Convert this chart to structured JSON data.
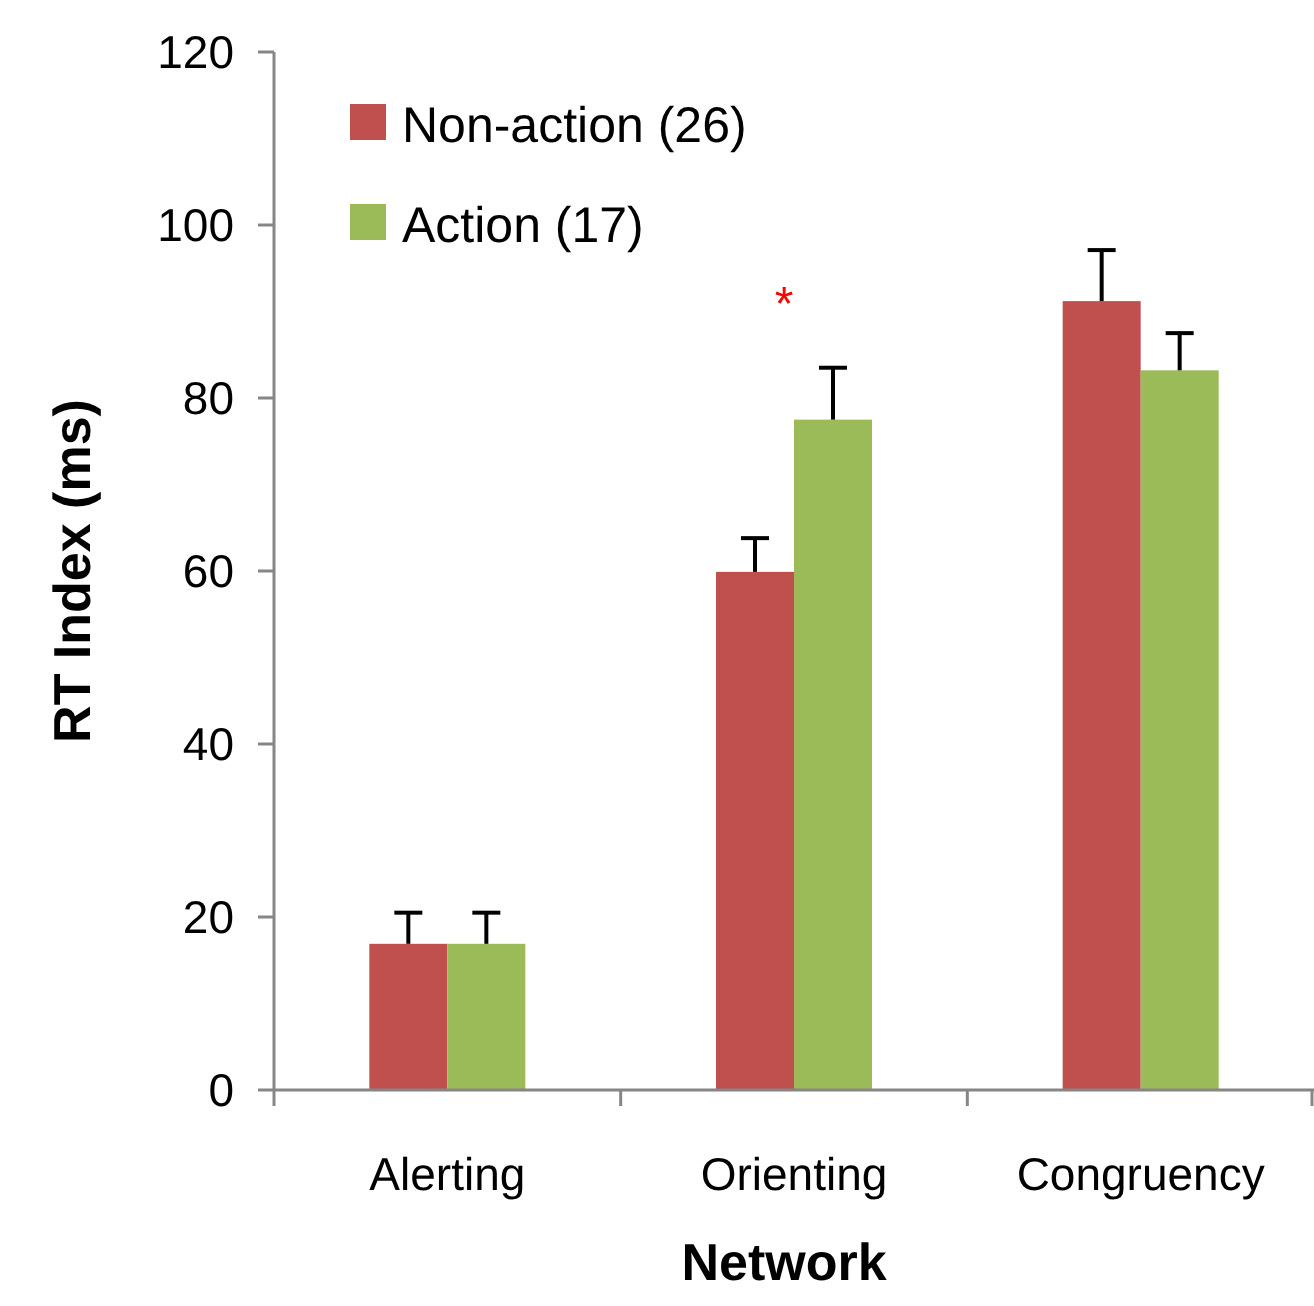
{
  "chart_data": {
    "type": "bar",
    "xlabel": "Network",
    "ylabel": "RT Index (ms)",
    "categories": [
      "Alerting",
      "Orienting",
      "Congruency"
    ],
    "series": [
      {
        "name": "Non-action (26)",
        "color": "#c0504d",
        "values": [
          16.9,
          59.9,
          91.2
        ],
        "errors": [
          [
            16.9,
            20.5
          ],
          [
            59.9,
            63.8
          ],
          [
            91.2,
            97.1
          ]
        ]
      },
      {
        "name": "Action (17)",
        "color": "#9bbb59",
        "values": [
          16.9,
          77.5,
          83.2
        ],
        "errors": [
          [
            16.9,
            20.5
          ],
          [
            77.5,
            83.5
          ],
          [
            83.2,
            87.5
          ]
        ]
      }
    ],
    "ylim": [
      0,
      120
    ],
    "yticks": [
      0,
      20,
      40,
      60,
      80,
      100,
      120
    ],
    "grid": false,
    "legend": "top left",
    "annotations": [
      "*"
    ]
  }
}
